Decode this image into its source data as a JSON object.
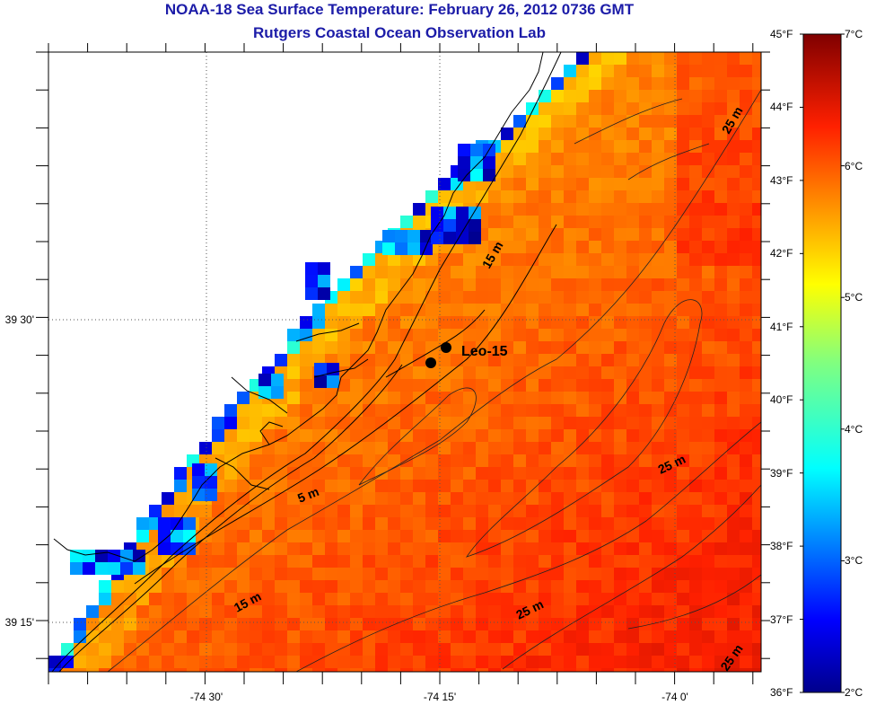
{
  "header": {
    "title": "NOAA-18 Sea Surface Temperature:  February 26, 2012 0736 GMT",
    "subtitle": "Rutgers Coastal Ocean Observation Lab"
  },
  "map": {
    "lon_labels": [
      "-74 30'",
      "-74 15'",
      "-74 0'"
    ],
    "lat_labels": [
      "39 30'",
      "39 15'"
    ],
    "station_label": "Leo-15",
    "contour_labels": [
      {
        "text": "25 m",
        "key": "c1"
      },
      {
        "text": "15 m",
        "key": "c2"
      },
      {
        "text": "5 m",
        "key": "c3"
      },
      {
        "text": "25 m",
        "key": "c4"
      },
      {
        "text": "15 m",
        "key": "c5"
      },
      {
        "text": "25 m",
        "key": "c6"
      },
      {
        "text": "25 m",
        "key": "c7"
      }
    ]
  },
  "colorbar": {
    "fahrenheit_labels": [
      "45°F",
      "44°F",
      "43°F",
      "42°F",
      "41°F",
      "40°F",
      "39°F",
      "38°F",
      "37°F",
      "36°F"
    ],
    "celsius_labels": [
      "7°C",
      "6°C",
      "5°C",
      "4°C",
      "3°C",
      "2°C"
    ],
    "f_range": [
      36,
      45
    ],
    "c_range": [
      2,
      7
    ]
  },
  "colors": {
    "title": "#1c1ca8",
    "sea_cold": "#00008c",
    "sea_warm": "#8c0000"
  }
}
